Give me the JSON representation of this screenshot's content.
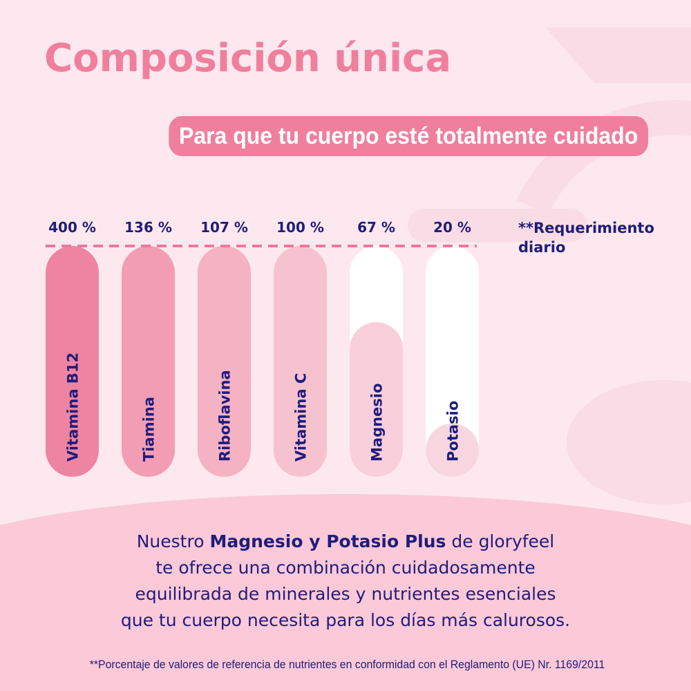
{
  "title": "Composición única",
  "subtitle": "Para que tu cuerpo esté totalmente cuidado",
  "legend": {
    "line1": "**Requerimiento",
    "line2": "diario"
  },
  "chart_data": {
    "type": "bar",
    "categories": [
      "Vitamina B12",
      "Tiamina",
      "Riboflavina",
      "Vitamina C",
      "Magnesio",
      "Potasio"
    ],
    "value_labels": [
      "400 %",
      "136 %",
      "107 %",
      "100 %",
      "67 %",
      "20 %"
    ],
    "values": [
      400,
      136,
      107,
      100,
      67,
      20
    ],
    "fill_fraction": [
      1,
      1,
      1,
      1,
      0.67,
      0.2
    ],
    "reference_line": "**Requerimiento diario",
    "colors": [
      "#ee84a2",
      "#f29db3",
      "#f5b2c3",
      "#f7c2d0",
      "#f8cfdb",
      "#f8d6e0"
    ],
    "track_color": "#ffffff",
    "reference_line_color": "#e87a9a",
    "label_color": "#1f1c7c"
  },
  "body": {
    "part1": "Nuestro ",
    "bold": "Magnesio y Potasio Plus",
    "part2": " de gloryfeel",
    "line2": "te ofrece una combinación cuidadosamente",
    "line3": "equilibrada de minerales y nutrientes esenciales",
    "line4": "que tu cuerpo necesita para los días más calurosos."
  },
  "footnote": "**Porcentaje de valores de referencia de nutrientes en conformidad con el Reglamento (UE) Nr. 1169/2011",
  "colors": {
    "accent": "#f07f9e",
    "text": "#1f1c7c",
    "background": "#fce8ee",
    "bottom_panel": "#fbc9d8"
  }
}
